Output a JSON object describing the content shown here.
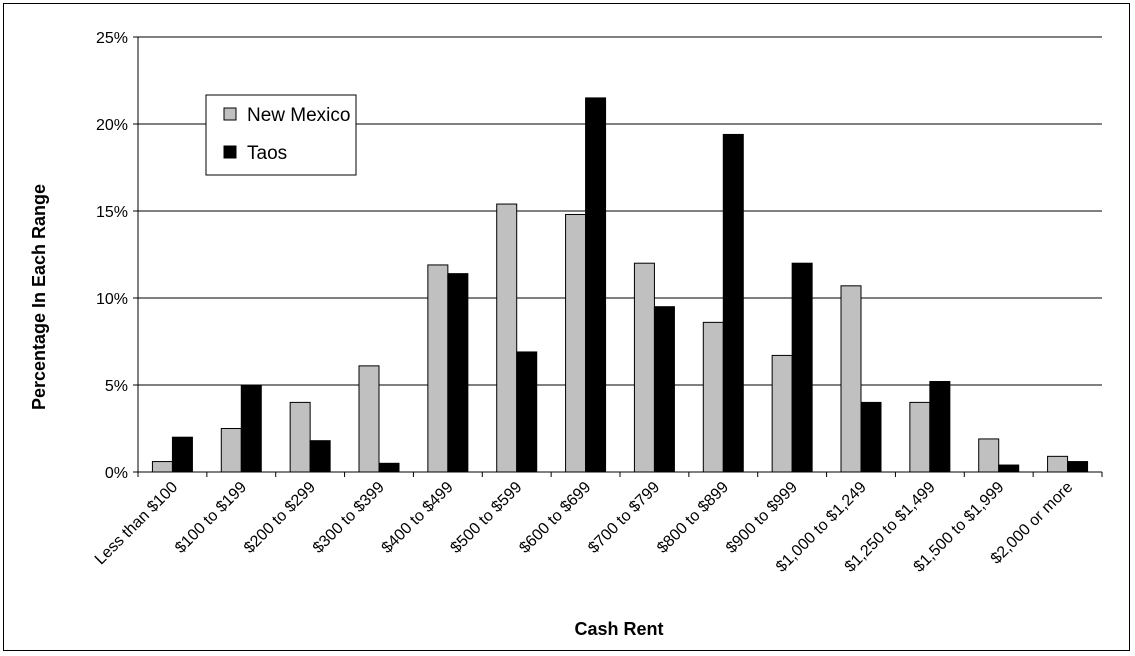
{
  "chart_data": {
    "type": "bar",
    "xlabel": "Cash Rent",
    "ylabel": "Percentage In Each Range",
    "ylim": [
      0,
      25
    ],
    "yticks": [
      "0%",
      "5%",
      "10%",
      "15%",
      "20%",
      "25%"
    ],
    "ytick_values": [
      0,
      5,
      10,
      15,
      20,
      25
    ],
    "grid": true,
    "legend_position": "top-left",
    "categories": [
      "Less than $100",
      "$100 to $199",
      "$200 to $299",
      "$300 to $399",
      "$400 to $499",
      "$500 to $599",
      "$600 to $699",
      "$700 to $799",
      "$800 to $899",
      "$900 to $999",
      "$1,000 to $1,249",
      "$1,250 to $1,499",
      "$1,500 to $1,999",
      "$2,000 or more"
    ],
    "series": [
      {
        "name": "New Mexico",
        "color": "#c0c0c0",
        "values": [
          0.6,
          2.5,
          4.0,
          6.1,
          11.9,
          15.4,
          14.8,
          12.0,
          8.6,
          6.7,
          10.7,
          4.0,
          1.9,
          0.9
        ]
      },
      {
        "name": "Taos",
        "color": "#000000",
        "values": [
          2.0,
          5.0,
          1.8,
          0.5,
          11.4,
          6.9,
          21.5,
          9.5,
          19.4,
          12.0,
          4.0,
          5.2,
          0.4,
          0.6
        ]
      }
    ]
  }
}
